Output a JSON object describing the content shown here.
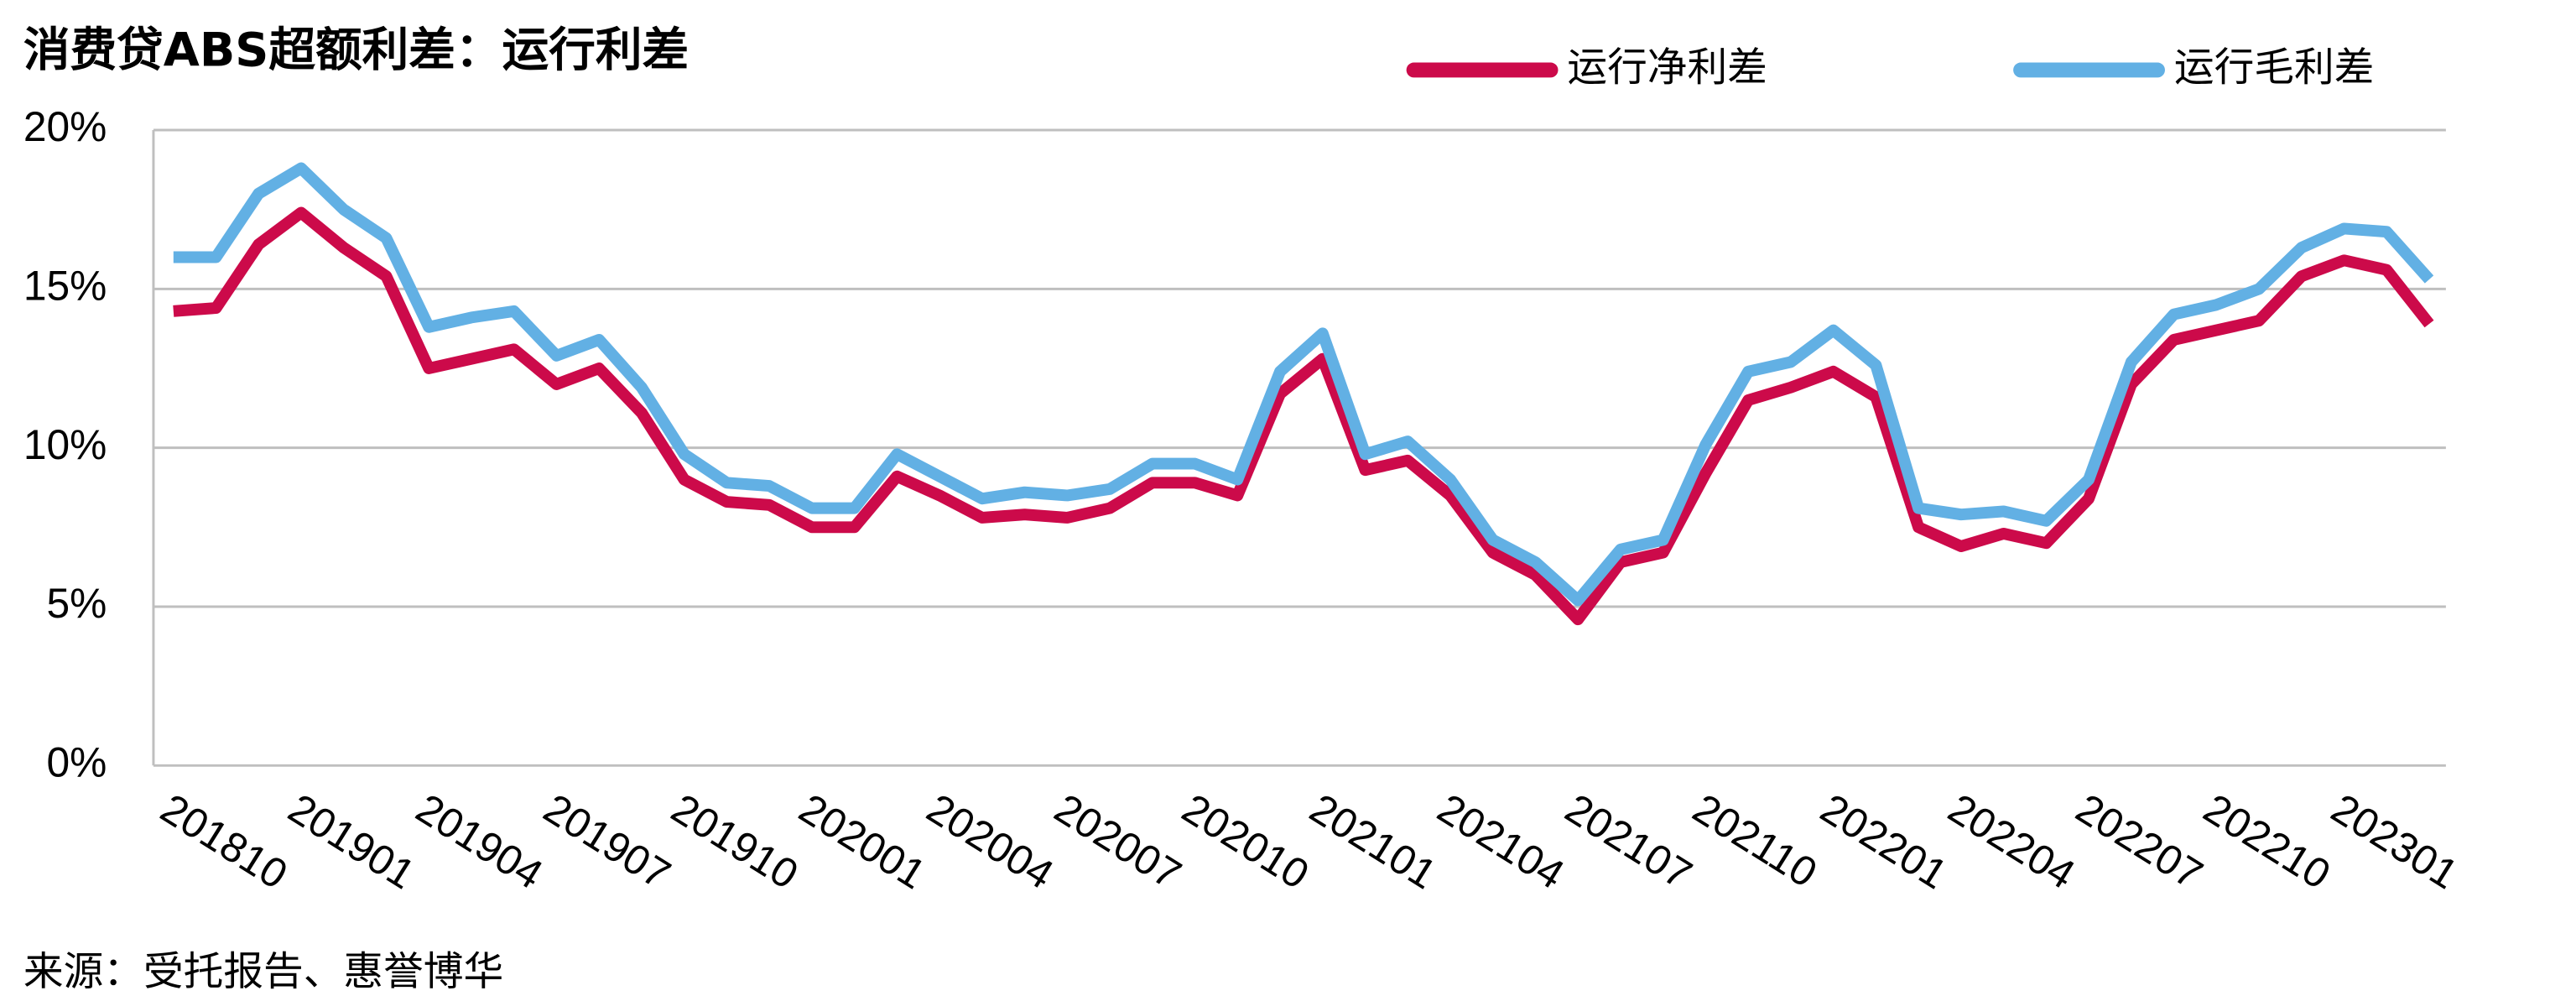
{
  "chart_data": {
    "type": "line",
    "title": "消费贷ABS超额利差：运行利差",
    "source": "来源：受托报告、惠誉博华",
    "categories": [
      "201810",
      null,
      null,
      "201901",
      null,
      null,
      "201904",
      null,
      null,
      "201907",
      null,
      null,
      "201910",
      null,
      null,
      "202001",
      null,
      null,
      "202004",
      null,
      null,
      "202007",
      null,
      null,
      "202010",
      null,
      null,
      "202101",
      null,
      null,
      "202104",
      null,
      null,
      "202107",
      null,
      null,
      "202110",
      null,
      null,
      "202201",
      null,
      null,
      "202204",
      null,
      null,
      "202207",
      null,
      null,
      "202210",
      null,
      null,
      "202301",
      null,
      null
    ],
    "series": [
      {
        "name": "运行净利差",
        "color": "#cc0a4a",
        "values": [
          14.3,
          14.4,
          16.4,
          17.4,
          16.3,
          15.4,
          12.5,
          12.8,
          13.1,
          12.0,
          12.5,
          11.1,
          9.0,
          8.3,
          8.2,
          7.5,
          7.5,
          9.1,
          8.5,
          7.8,
          7.9,
          7.8,
          8.1,
          8.9,
          8.9,
          8.5,
          11.7,
          12.8,
          9.3,
          9.6,
          8.5,
          6.7,
          6.0,
          4.6,
          6.4,
          6.7,
          9.2,
          11.5,
          11.9,
          12.4,
          11.6,
          7.5,
          6.9,
          7.3,
          7.0,
          8.4,
          12.0,
          13.4,
          13.7,
          14.0,
          15.4,
          15.9,
          15.6,
          13.9
        ]
      },
      {
        "name": "运行毛利差",
        "color": "#62b0e4",
        "values": [
          16.0,
          16.0,
          18.0,
          18.8,
          17.5,
          16.6,
          13.8,
          14.1,
          14.3,
          12.9,
          13.4,
          11.9,
          9.8,
          8.9,
          8.8,
          8.1,
          8.1,
          9.8,
          9.1,
          8.4,
          8.6,
          8.5,
          8.7,
          9.5,
          9.5,
          9.0,
          12.4,
          13.6,
          9.8,
          10.2,
          9.0,
          7.1,
          6.4,
          5.2,
          6.8,
          7.1,
          10.1,
          12.4,
          12.7,
          13.7,
          12.6,
          8.1,
          7.9,
          8.0,
          7.7,
          9.0,
          12.7,
          14.2,
          14.5,
          15.0,
          16.3,
          16.9,
          16.8,
          15.3
        ]
      }
    ],
    "ylim": [
      0,
      20
    ],
    "yticks": [
      {
        "value": 0,
        "label": "0%"
      },
      {
        "value": 5,
        "label": "5%"
      },
      {
        "value": 10,
        "label": "10%"
      },
      {
        "value": 15,
        "label": "15%"
      },
      {
        "value": 20,
        "label": "20%"
      }
    ],
    "grid": true,
    "legend": "top"
  }
}
